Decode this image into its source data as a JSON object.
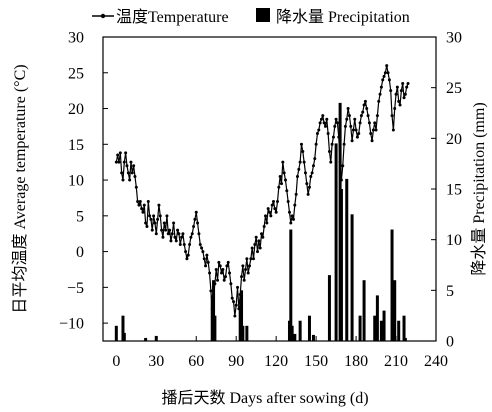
{
  "chart_data": {
    "type": "bar+line",
    "legend": {
      "placement": "top",
      "entries": [
        {
          "name": "温度Temperature",
          "marker": "line-with-dot"
        },
        {
          "name": "降水量 Precipitation",
          "marker": "filled-square"
        }
      ]
    },
    "xlabel": "播后天数 Days after sowing (d)",
    "ylabel_left": "日平均温度 Average temperature (°C)",
    "ylabel_right": "降水量 Precipitation (mm)",
    "x_ticks": [
      "0",
      "30",
      "60",
      "90",
      "120",
      "150",
      "180",
      "210",
      "240"
    ],
    "y_left_ticks": [
      "30",
      "25",
      "20",
      "15",
      "10",
      "5",
      "0",
      "−5",
      "−10"
    ],
    "y_right_ticks": [
      "30",
      "25",
      "20",
      "15",
      "10",
      "5",
      "0"
    ],
    "xlim": [
      -10,
      240
    ],
    "ylim_left": [
      -12.5,
      30
    ],
    "ylim_right": [
      0,
      30
    ],
    "colors": {
      "line": "#000000",
      "bars": "#000000"
    },
    "temperature_series": {
      "name": "温度Temperature",
      "points": [
        [
          0,
          12.5
        ],
        [
          1,
          13.5
        ],
        [
          2,
          12.5
        ],
        [
          3,
          13.8
        ],
        [
          4,
          11
        ],
        [
          5,
          10
        ],
        [
          6,
          12.5
        ],
        [
          7,
          13.8
        ],
        [
          8,
          12
        ],
        [
          9,
          11
        ],
        [
          10,
          10
        ],
        [
          11,
          12.5
        ],
        [
          12,
          11
        ],
        [
          13,
          12
        ],
        [
          14,
          10.5
        ],
        [
          15,
          9
        ],
        [
          16,
          7
        ],
        [
          17,
          6.5
        ],
        [
          18,
          7
        ],
        [
          19,
          6
        ],
        [
          20,
          5.5
        ],
        [
          21,
          6.5
        ],
        [
          22,
          4
        ],
        [
          23,
          3.5
        ],
        [
          24,
          7
        ],
        [
          25,
          5
        ],
        [
          26,
          4.5
        ],
        [
          27,
          3
        ],
        [
          28,
          5
        ],
        [
          29,
          4
        ],
        [
          30,
          2.5
        ],
        [
          31,
          4.5
        ],
        [
          32,
          6.5
        ],
        [
          33,
          5
        ],
        [
          34,
          3
        ],
        [
          35,
          2
        ],
        [
          36,
          4
        ],
        [
          37,
          3
        ],
        [
          38,
          5
        ],
        [
          39,
          2.5
        ],
        [
          40,
          3
        ],
        [
          41,
          1.5
        ],
        [
          42,
          2.5
        ],
        [
          43,
          4
        ],
        [
          44,
          2
        ],
        [
          45,
          1.5
        ],
        [
          46,
          3
        ],
        [
          47,
          2.5
        ],
        [
          48,
          1
        ],
        [
          49,
          2
        ],
        [
          50,
          2.5
        ],
        [
          51,
          1
        ],
        [
          52,
          0
        ],
        [
          53,
          -1
        ],
        [
          54,
          -0.5
        ],
        [
          55,
          1
        ],
        [
          56,
          2
        ],
        [
          57,
          2.5
        ],
        [
          58,
          3.5
        ],
        [
          59,
          4.5
        ],
        [
          60,
          5.5
        ],
        [
          61,
          4
        ],
        [
          62,
          2.5
        ],
        [
          63,
          1
        ],
        [
          64,
          0.5
        ],
        [
          65,
          0
        ],
        [
          66,
          -1
        ],
        [
          67,
          -2
        ],
        [
          68,
          -0.5
        ],
        [
          69,
          -1.5
        ],
        [
          70,
          -3
        ],
        [
          71,
          -5.5
        ],
        [
          72,
          -8
        ],
        [
          73,
          -6
        ],
        [
          74,
          -4.5
        ],
        [
          75,
          -2.5
        ],
        [
          76,
          -4
        ],
        [
          77,
          -1.5
        ],
        [
          78,
          -2
        ],
        [
          79,
          -3
        ],
        [
          80,
          -2.5
        ],
        [
          81,
          -4
        ],
        [
          82,
          -3.5
        ],
        [
          83,
          -2
        ],
        [
          84,
          -1.5
        ],
        [
          85,
          -3
        ],
        [
          86,
          -4.5
        ],
        [
          87,
          -6.5
        ],
        [
          88,
          -7
        ],
        [
          89,
          -9
        ],
        [
          90,
          -7.5
        ],
        [
          91,
          -5
        ],
        [
          92,
          -8
        ],
        [
          93,
          -6
        ],
        [
          94,
          -3.5
        ],
        [
          95,
          -2
        ],
        [
          96,
          -4
        ],
        [
          97,
          -2.5
        ],
        [
          98,
          -1
        ],
        [
          99,
          -3
        ],
        [
          100,
          -2
        ],
        [
          101,
          -1
        ],
        [
          102,
          0.5
        ],
        [
          103,
          -1
        ],
        [
          104,
          1
        ],
        [
          105,
          2
        ],
        [
          106,
          0
        ],
        [
          107,
          1.5
        ],
        [
          108,
          0.5
        ],
        [
          109,
          2.5
        ],
        [
          110,
          2
        ],
        [
          111,
          3.5
        ],
        [
          112,
          5
        ],
        [
          113,
          4
        ],
        [
          114,
          6
        ],
        [
          115,
          5.5
        ],
        [
          116,
          5
        ],
        [
          117,
          6.5
        ],
        [
          118,
          7
        ],
        [
          119,
          6
        ],
        [
          120,
          5.5
        ],
        [
          121,
          7
        ],
        [
          122,
          9
        ],
        [
          123,
          10.5
        ],
        [
          124,
          9.5
        ],
        [
          125,
          12.5
        ],
        [
          126,
          11
        ],
        [
          127,
          10
        ],
        [
          128,
          8.5
        ],
        [
          129,
          7
        ],
        [
          130,
          5.5
        ],
        [
          131,
          4
        ],
        [
          132,
          5
        ],
        [
          133,
          4.5
        ],
        [
          134,
          6.5
        ],
        [
          135,
          8
        ],
        [
          136,
          10.5
        ],
        [
          137,
          11.5
        ],
        [
          138,
          12.5
        ],
        [
          139,
          15
        ],
        [
          140,
          14
        ],
        [
          141,
          12.5
        ],
        [
          142,
          11
        ],
        [
          143,
          9.5
        ],
        [
          144,
          8
        ],
        [
          145,
          9
        ],
        [
          146,
          10.5
        ],
        [
          147,
          11
        ],
        [
          148,
          12
        ],
        [
          149,
          13
        ],
        [
          150,
          15
        ],
        [
          151,
          16.5
        ],
        [
          152,
          17
        ],
        [
          153,
          18
        ],
        [
          154,
          18.5
        ],
        [
          155,
          19
        ],
        [
          156,
          18
        ],
        [
          157,
          17.5
        ],
        [
          158,
          18.5
        ],
        [
          159,
          16.5
        ],
        [
          160,
          14
        ],
        [
          161,
          12.5
        ],
        [
          162,
          15
        ],
        [
          163,
          16
        ],
        [
          164,
          17.5
        ],
        [
          165,
          18.5
        ],
        [
          166,
          18
        ],
        [
          167,
          16
        ],
        [
          168,
          12.5
        ],
        [
          169,
          10
        ],
        [
          170,
          12
        ],
        [
          171,
          15
        ],
        [
          172,
          17.5
        ],
        [
          173,
          18.5
        ],
        [
          174,
          20
        ],
        [
          175,
          19
        ],
        [
          176,
          17.5
        ],
        [
          177,
          15.5
        ],
        [
          178,
          17
        ],
        [
          179,
          18.5
        ],
        [
          180,
          17
        ],
        [
          181,
          16
        ],
        [
          182,
          16.5
        ],
        [
          183,
          18
        ],
        [
          184,
          19
        ],
        [
          185,
          19.5
        ],
        [
          186,
          20.5
        ],
        [
          187,
          21
        ],
        [
          188,
          20
        ],
        [
          189,
          19
        ],
        [
          190,
          18
        ],
        [
          191,
          16.5
        ],
        [
          192,
          15.5
        ],
        [
          193,
          17
        ],
        [
          194,
          18
        ],
        [
          195,
          17
        ],
        [
          196,
          19
        ],
        [
          197,
          21
        ],
        [
          198,
          22
        ],
        [
          199,
          23
        ],
        [
          200,
          24
        ],
        [
          201,
          24.5
        ],
        [
          202,
          25
        ],
        [
          203,
          26
        ],
        [
          204,
          25
        ],
        [
          205,
          24
        ],
        [
          206,
          22.5
        ],
        [
          207,
          19
        ],
        [
          208,
          17
        ],
        [
          209,
          20
        ],
        [
          210,
          22
        ],
        [
          211,
          23
        ],
        [
          212,
          21
        ],
        [
          213,
          20.5
        ],
        [
          214,
          22.5
        ],
        [
          215,
          23.5
        ],
        [
          216,
          21.5
        ],
        [
          217,
          22
        ],
        [
          218,
          23
        ],
        [
          219,
          23.5
        ]
      ]
    },
    "precipitation_series": {
      "name": "降水量 Precipitation",
      "bars": [
        [
          0,
          1.5
        ],
        [
          5,
          2.5
        ],
        [
          6,
          0.8
        ],
        [
          22,
          0.3
        ],
        [
          30,
          0.5
        ],
        [
          72,
          4.5
        ],
        [
          73,
          6
        ],
        [
          74,
          2.5
        ],
        [
          93,
          3.5
        ],
        [
          94,
          5
        ],
        [
          95,
          1.5
        ],
        [
          98,
          1.5
        ],
        [
          130,
          2
        ],
        [
          131,
          11
        ],
        [
          132,
          1.5
        ],
        [
          134,
          0.7
        ],
        [
          138,
          2
        ],
        [
          145,
          2.5
        ],
        [
          148,
          0.6
        ],
        [
          160,
          6.5
        ],
        [
          165,
          19.5
        ],
        [
          168,
          23.5
        ],
        [
          169,
          15
        ],
        [
          173,
          16
        ],
        [
          177,
          12.5
        ],
        [
          183,
          2.5
        ],
        [
          186,
          6
        ],
        [
          194,
          2.5
        ],
        [
          196,
          4.5
        ],
        [
          199,
          2
        ],
        [
          201,
          3
        ],
        [
          207,
          11
        ],
        [
          209,
          6
        ],
        [
          212,
          2
        ],
        [
          216,
          2.5
        ],
        [
          217,
          0.3
        ]
      ]
    }
  }
}
